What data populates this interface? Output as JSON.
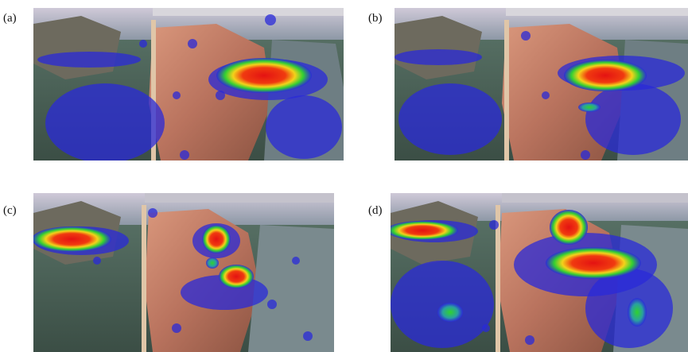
{
  "panels": [
    {
      "label": "(a)"
    },
    {
      "label": "(b)"
    },
    {
      "label": "(c)"
    },
    {
      "label": "(d)"
    }
  ],
  "colors": {
    "heat_low": "#2a2ad8",
    "heat_mid": "#22d022",
    "heat_high": "#e01010",
    "rock": "#c98a72",
    "water": "#4f6a60",
    "ceiling": "#b8bcc8"
  }
}
